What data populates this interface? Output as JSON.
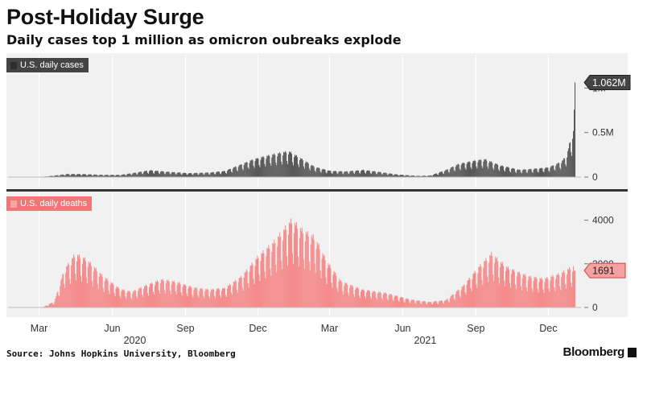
{
  "header": {
    "title": "Post-Holiday Surge",
    "subtitle": "Daily cases top 1 million as omicron oubreaks explode"
  },
  "footer": {
    "source": "Source: Johns Hopkins University, Bloomberg",
    "brand": "Bloomberg"
  },
  "colors": {
    "cases": "#595959",
    "deaths": "#f58b8b",
    "bg": "#f1f1f1",
    "divider": "#333333"
  },
  "chart_data": [
    {
      "type": "bar",
      "legend": "U.S. daily cases",
      "legend_placement": "top-left",
      "callout": "1.062M",
      "callout_value": 1062000,
      "yticks": [
        {
          "value": 0,
          "label": "0"
        },
        {
          "value": 500000,
          "label": "0.5M"
        },
        {
          "value": 1000000,
          "label": "1M"
        }
      ],
      "ylim": [
        0,
        1130000
      ],
      "grid": "vertical",
      "x_start": "2020-01-22",
      "x_end": "2022-01-03",
      "weekly_pattern": true,
      "anchors": [
        [
          "2020-01-22",
          0
        ],
        [
          "2020-03-01",
          100
        ],
        [
          "2020-03-20",
          15000
        ],
        [
          "2020-04-05",
          31000
        ],
        [
          "2020-04-25",
          29000
        ],
        [
          "2020-05-20",
          22000
        ],
        [
          "2020-06-10",
          21000
        ],
        [
          "2020-06-25",
          38000
        ],
        [
          "2020-07-18",
          67000
        ],
        [
          "2020-08-10",
          52000
        ],
        [
          "2020-09-05",
          38000
        ],
        [
          "2020-10-01",
          45000
        ],
        [
          "2020-10-20",
          60000
        ],
        [
          "2020-11-08",
          120000
        ],
        [
          "2020-11-25",
          175000
        ],
        [
          "2020-12-15",
          215000
        ],
        [
          "2021-01-08",
          255000
        ],
        [
          "2021-01-20",
          200000
        ],
        [
          "2021-02-10",
          100000
        ],
        [
          "2021-03-01",
          62000
        ],
        [
          "2021-03-20",
          55000
        ],
        [
          "2021-04-12",
          70000
        ],
        [
          "2021-05-01",
          52000
        ],
        [
          "2021-05-25",
          25000
        ],
        [
          "2021-06-20",
          12000
        ],
        [
          "2021-07-05",
          15000
        ],
        [
          "2021-07-25",
          70000
        ],
        [
          "2021-08-10",
          130000
        ],
        [
          "2021-09-01",
          165000
        ],
        [
          "2021-09-12",
          175000
        ],
        [
          "2021-10-01",
          115000
        ],
        [
          "2021-10-25",
          72000
        ],
        [
          "2021-11-10",
          80000
        ],
        [
          "2021-11-30",
          95000
        ],
        [
          "2021-12-10",
          125000
        ],
        [
          "2021-12-18",
          160000
        ],
        [
          "2021-12-24",
          220000
        ],
        [
          "2021-12-29",
          390000
        ],
        [
          "2022-01-01",
          450000
        ],
        [
          "2022-01-03",
          1062000
        ]
      ]
    },
    {
      "type": "bar",
      "legend": "U.S. daily deaths",
      "legend_placement": "top-left",
      "callout": "1691",
      "callout_value": 1691,
      "yticks": [
        {
          "value": 0,
          "label": "0"
        },
        {
          "value": 2000,
          "label": "2000"
        },
        {
          "value": 4000,
          "label": "4000"
        }
      ],
      "ylim": [
        0,
        4500
      ],
      "grid": "vertical",
      "x_start": "2020-01-22",
      "x_end": "2022-01-03",
      "weekly_pattern": true,
      "anchors": [
        [
          "2020-01-22",
          0
        ],
        [
          "2020-03-05",
          0
        ],
        [
          "2020-03-20",
          250
        ],
        [
          "2020-04-01",
          1500
        ],
        [
          "2020-04-15",
          2150
        ],
        [
          "2020-04-30",
          1900
        ],
        [
          "2020-05-20",
          1250
        ],
        [
          "2020-06-10",
          750
        ],
        [
          "2020-06-25",
          620
        ],
        [
          "2020-07-10",
          850
        ],
        [
          "2020-08-01",
          1120
        ],
        [
          "2020-08-20",
          1030
        ],
        [
          "2020-09-10",
          800
        ],
        [
          "2020-10-01",
          720
        ],
        [
          "2020-10-20",
          780
        ],
        [
          "2020-11-10",
          1250
        ],
        [
          "2020-12-01",
          2050
        ],
        [
          "2020-12-20",
          2600
        ],
        [
          "2021-01-12",
          3500
        ],
        [
          "2021-01-25",
          3100
        ],
        [
          "2021-02-10",
          2800
        ],
        [
          "2021-02-25",
          1850
        ],
        [
          "2021-03-15",
          1050
        ],
        [
          "2021-04-10",
          720
        ],
        [
          "2021-05-10",
          580
        ],
        [
          "2021-06-10",
          320
        ],
        [
          "2021-07-05",
          220
        ],
        [
          "2021-07-25",
          300
        ],
        [
          "2021-08-15",
          850
        ],
        [
          "2021-09-05",
          1650
        ],
        [
          "2021-09-20",
          2150
        ],
        [
          "2021-10-10",
          1600
        ],
        [
          "2021-11-05",
          1250
        ],
        [
          "2021-11-25",
          1150
        ],
        [
          "2021-12-15",
          1350
        ],
        [
          "2022-01-03",
          1691
        ]
      ]
    }
  ],
  "xaxis": {
    "months": [
      {
        "date": "2020-03-01",
        "label": "Mar"
      },
      {
        "date": "2020-06-01",
        "label": "Jun"
      },
      {
        "date": "2020-09-01",
        "label": "Sep"
      },
      {
        "date": "2020-12-01",
        "label": "Dec"
      },
      {
        "date": "2021-03-01",
        "label": "Mar"
      },
      {
        "date": "2021-06-01",
        "label": "Jun"
      },
      {
        "date": "2021-09-01",
        "label": "Sep"
      },
      {
        "date": "2021-12-01",
        "label": "Dec"
      }
    ],
    "years": [
      {
        "date": "2020-06-01",
        "label": "2020"
      },
      {
        "date": "2021-06-01",
        "label": "2021"
      }
    ]
  }
}
